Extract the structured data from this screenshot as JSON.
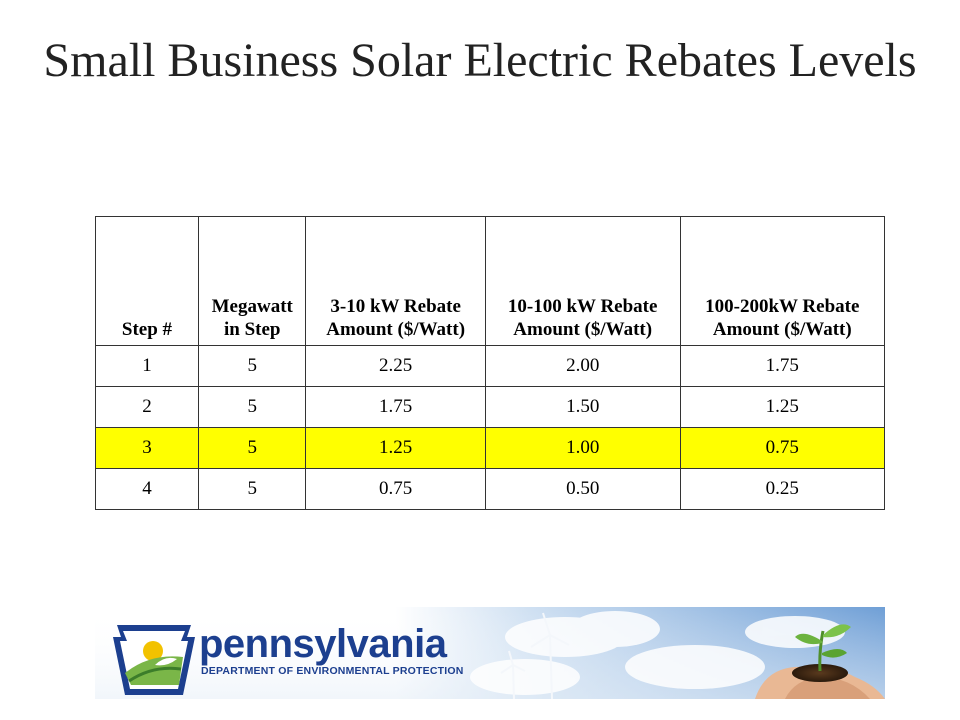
{
  "title": "Small Business Solar Electric Rebates Levels",
  "table": {
    "headers": [
      "Step #",
      "Megawatt in Step",
      "3-10 kW Rebate Amount ($/Watt)",
      "10-100 kW Rebate Amount ($/Watt)",
      "100-200kW Rebate Amount ($/Watt)"
    ],
    "rows": [
      [
        "1",
        "5",
        "2.25",
        "2.00",
        "1.75"
      ],
      [
        "2",
        "5",
        "1.75",
        "1.50",
        "1.25"
      ],
      [
        "3",
        "5",
        "1.25",
        "1.00",
        "0.75"
      ],
      [
        "4",
        "5",
        "0.75",
        "0.50",
        "0.25"
      ]
    ],
    "highlight_color": "#ffff00"
  },
  "footer": {
    "logo_name": "pennsylvania",
    "logo_subtitle": "DEPARTMENT OF ENVIRONMENTAL PROTECTION",
    "brand_color": "#1c3f8f",
    "icons": [
      "keystone-logo-icon",
      "wind-turbine-icon",
      "seedling-in-hands-icon"
    ]
  }
}
